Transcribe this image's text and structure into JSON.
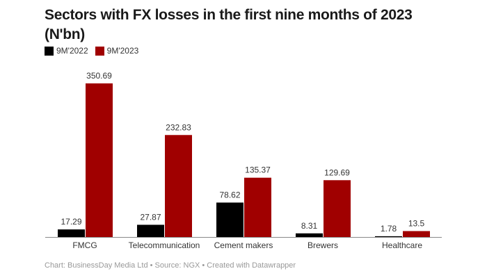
{
  "chart_data": {
    "type": "bar",
    "title": "Sectors with FX losses in the first nine months of 2023 (N'bn)",
    "categories": [
      "FMCG",
      "Telecommunication",
      "Cement makers",
      "Brewers",
      "Healthcare"
    ],
    "series": [
      {
        "name": "9M'2022",
        "color": "#000000",
        "values": [
          17.29,
          27.87,
          78.62,
          8.31,
          1.78
        ],
        "labels": [
          "17.29",
          "27.87",
          "78.62",
          "8.31",
          "1.78"
        ]
      },
      {
        "name": "9M'2023",
        "color": "#a00000",
        "values": [
          350.69,
          232.83,
          135.37,
          129.69,
          13.5
        ],
        "labels": [
          "350.69",
          "232.83",
          "135.37",
          "129.69",
          "13.5"
        ]
      }
    ],
    "ylim": [
      0,
      350.69
    ],
    "grid": false,
    "legend": "top-left"
  },
  "footer": "Chart: BusinessDay Media Ltd • Source: NGX • Created with Datawrapper"
}
